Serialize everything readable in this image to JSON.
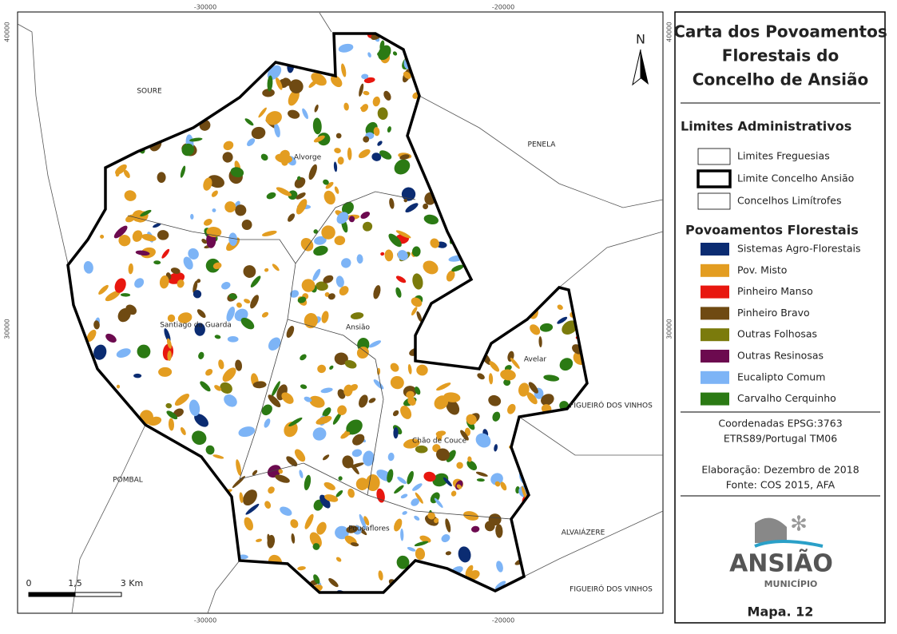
{
  "map": {
    "coords": {
      "top": [
        "-30000",
        "-20000"
      ],
      "bottom": [
        "-30000",
        "-20000"
      ],
      "left": [
        "40000",
        "30000"
      ],
      "right": [
        "40000",
        "30000"
      ]
    },
    "places": [
      "SOURE",
      "PENELA",
      "POMBAL",
      "ALVAIÁZERE",
      "FIGUEIRÓ DOS VINHOS",
      "FIGUEIRÓ DOS VINHOS",
      "Alvorge",
      "Santiago da Guarda",
      "Ansião",
      "Avelar",
      "Chão de Couce",
      "Pousaflores"
    ],
    "north": "N",
    "scale": [
      "0",
      "1,5",
      "3 Km"
    ]
  },
  "legend": {
    "title": [
      "Carta dos Povoamentos",
      "Florestais do",
      "Concelho de Ansião"
    ],
    "admin_title": "Limites Administrativos",
    "admin_items": [
      "Limites Freguesias",
      "Limite Concelho Ansião",
      "Concelhos Limítrofes"
    ],
    "forest_title": "Povoamentos Florestais",
    "forest_items": [
      {
        "name": "Sistemas Agro-Florestais",
        "color": "#0b2c72"
      },
      {
        "name": "Pov. Misto",
        "color": "#e39d21"
      },
      {
        "name": "Pinheiro Manso",
        "color": "#e8170f"
      },
      {
        "name": "Pinheiro Bravo",
        "color": "#6f4a12"
      },
      {
        "name": "Outras Folhosas",
        "color": "#7b7b0c"
      },
      {
        "name": "Outras Resinosas",
        "color": "#6c0a4f"
      },
      {
        "name": "Eucalipto Comum",
        "color": "#7db4f6"
      },
      {
        "name": "Carvalho Cerquinho",
        "color": "#2b7a14"
      }
    ],
    "coordinates": [
      "Coordenadas EPSG:3763",
      "ETRS89/Portugal TM06"
    ],
    "credits": [
      "Elaboração: Dezembro de 2018",
      "Fonte: COS 2015, AFA"
    ],
    "logo": [
      "ANSIÃO",
      "MUNICÍPIO"
    ],
    "map_number": "Mapa. 12"
  }
}
